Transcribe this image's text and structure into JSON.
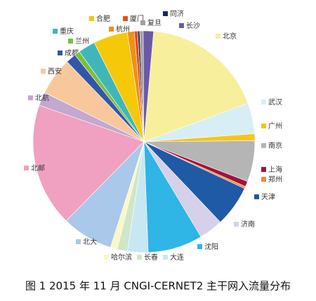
{
  "chart_data": {
    "type": "pie",
    "caption": "图 1 2015 年 11 月 CNGI-CERNET2 主干网入流量分布",
    "categories": [
      "北京",
      "武汉",
      "广州",
      "南京",
      "上海",
      "郑州",
      "天津",
      "济南",
      "沈阳",
      "大连",
      "长春",
      "哈尔滨",
      "北大",
      "北邮",
      "北航",
      "西安",
      "成都",
      "兰州",
      "重庆",
      "合肥",
      "杭州",
      "厦门",
      "同济",
      "复旦",
      "长沙"
    ],
    "values": [
      18,
      4.5,
      1,
      6,
      0.8,
      0.3,
      6,
      3.5,
      8,
      3,
      1.5,
      1,
      7.5,
      18,
      2,
      5.5,
      1.5,
      0.8,
      2.5,
      5,
      1,
      0.5,
      0.3,
      0.5,
      1.5
    ],
    "colors": [
      "#f7ef9c",
      "#d8eef5",
      "#f5c518",
      "#b5b5b5",
      "#a0143c",
      "#f08a3c",
      "#1f5aa6",
      "#d6d0ea",
      "#2fb5e6",
      "#c7e8f3",
      "#cfe6c9",
      "#fdf7c2",
      "#a9c8ea",
      "#f0a0c0",
      "#c3a8d0",
      "#f8c89c",
      "#3257a8",
      "#7cbf3c",
      "#3fb7b8",
      "#f5c80a",
      "#f09018",
      "#e84c1c",
      "#1a2a5c",
      "#a0a0a0",
      "#6a5aa6"
    ]
  }
}
